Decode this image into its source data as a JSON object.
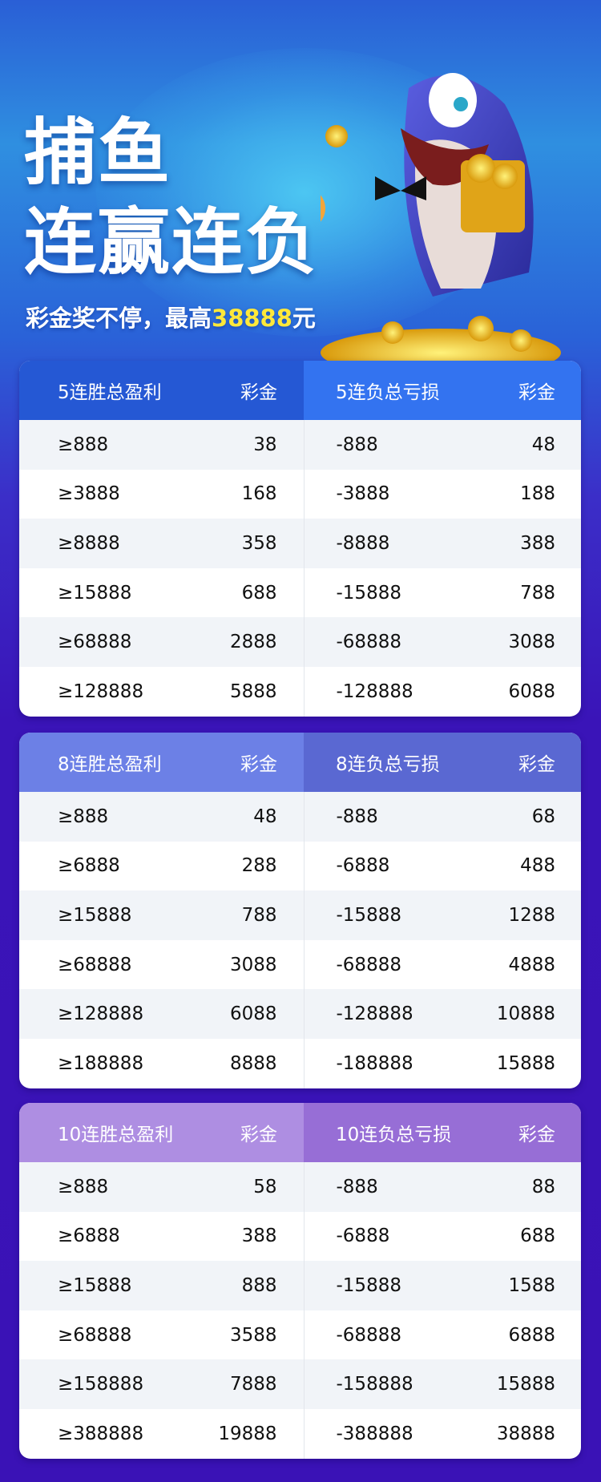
{
  "hero": {
    "title_line1": "捕鱼",
    "title_line2": "连赢连负",
    "subtitle_prefix": "彩金奖不停，最高",
    "subtitle_amount": "38888",
    "subtitle_suffix": "元",
    "highlight_color": "#ffe83a",
    "illustration": "shark-with-treasure-chest"
  },
  "tables": [
    {
      "win_header": "5连胜总盈利",
      "loss_header": "5连负总亏损",
      "bonus_header": "彩金",
      "colors": {
        "win": "#2558d4",
        "loss": "#3373f0"
      },
      "rows": [
        [
          "≥888",
          "38",
          "-888",
          "48"
        ],
        [
          "≥3888",
          "168",
          "-3888",
          "188"
        ],
        [
          "≥8888",
          "358",
          "-8888",
          "388"
        ],
        [
          "≥15888",
          "688",
          "-15888",
          "788"
        ],
        [
          "≥68888",
          "2888",
          "-68888",
          "3088"
        ],
        [
          "≥128888",
          "5888",
          "-128888",
          "6088"
        ]
      ]
    },
    {
      "win_header": "8连胜总盈利",
      "loss_header": "8连负总亏损",
      "bonus_header": "彩金",
      "colors": {
        "win": "#6c80e6",
        "loss": "#5a68d2"
      },
      "rows": [
        [
          "≥888",
          "48",
          "-888",
          "68"
        ],
        [
          "≥6888",
          "288",
          "-6888",
          "488"
        ],
        [
          "≥15888",
          "788",
          "-15888",
          "1288"
        ],
        [
          "≥68888",
          "3088",
          "-68888",
          "4888"
        ],
        [
          "≥128888",
          "6088",
          "-128888",
          "10888"
        ],
        [
          "≥188888",
          "8888",
          "-188888",
          "15888"
        ]
      ]
    },
    {
      "win_header": "10连胜总盈利",
      "loss_header": "10连负总亏损",
      "bonus_header": "彩金",
      "colors": {
        "win": "#ae8ee2",
        "loss": "#976ed6"
      },
      "rows": [
        [
          "≥888",
          "58",
          "-888",
          "88"
        ],
        [
          "≥6888",
          "388",
          "-6888",
          "688"
        ],
        [
          "≥15888",
          "888",
          "-15888",
          "1588"
        ],
        [
          "≥68888",
          "3588",
          "-68888",
          "6888"
        ],
        [
          "≥158888",
          "7888",
          "-158888",
          "15888"
        ],
        [
          "≥388888",
          "19888",
          "-388888",
          "38888"
        ]
      ]
    }
  ]
}
